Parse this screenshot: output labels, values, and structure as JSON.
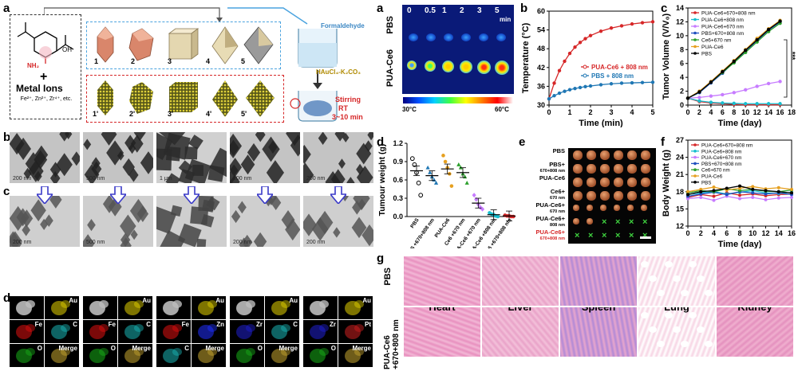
{
  "panel_labels": {
    "a_left": "a",
    "b": "b",
    "c_left": "c",
    "d_left": "d",
    "a_right": "a",
    "b_right": "b",
    "c_right": "c",
    "d_right": "d",
    "e": "e",
    "f": "f",
    "g": "g"
  },
  "scheme": {
    "metal_ions_title": "Metal Ions",
    "metal_ions_list": "Fe²⁺, Zn²⁺, Zr⁴⁺, etc.",
    "ligand_nh2": "NH₂",
    "ligand_oh": "OH",
    "plus": "+",
    "formaldehyde": "Formaldehyde",
    "haucl": "HAuCl₄-K₂CO₃",
    "stirring": "Stirring",
    "rt": "RT",
    "time": "3~10 min",
    "mof_numbers": [
      "1",
      "2",
      "3",
      "4",
      "5"
    ],
    "au_numbers": [
      "1'",
      "2'",
      "3'",
      "4'",
      "5'"
    ]
  },
  "tem_b_scales": [
    "200 nm",
    "500 nm",
    "1 μm",
    "200 nm",
    "200 nm"
  ],
  "tem_c_scales": [
    "200 nm",
    "500 nm",
    "",
    "200 nm",
    "200 nm"
  ],
  "eds_groups": [
    [
      "Au",
      "Fe",
      "C",
      "O",
      "Merge"
    ],
    [
      "Au",
      "Fe",
      "C",
      "O",
      "Merge"
    ],
    [
      "Au",
      "Fe",
      "Zn",
      "C",
      "Merge"
    ],
    [
      "Au",
      "Zr",
      "C",
      "O",
      "Merge"
    ],
    [
      "Au",
      "Zr",
      "Pt",
      "O",
      "Merge"
    ]
  ],
  "thermal": {
    "times": [
      "0",
      "0.5",
      "1",
      "2",
      "3",
      "5"
    ],
    "time_unit": "min",
    "rows": [
      "PBS",
      "PUA-Ce6"
    ],
    "scale_min": "30°C",
    "scale_max": "60°C"
  },
  "chart_b": {
    "type": "line",
    "xlabel": "Time (min)",
    "ylabel": "Temperature (°C)",
    "xlim": [
      0,
      5
    ],
    "ylim": [
      30,
      60
    ],
    "xticks": [
      0,
      1,
      2,
      3,
      4,
      5
    ],
    "yticks": [
      30,
      36,
      42,
      48,
      54,
      60
    ],
    "series": [
      {
        "name": "PUA-Ce6 + 808 nm",
        "color": "#d62728",
        "x": [
          0,
          0.25,
          0.5,
          0.75,
          1,
          1.25,
          1.5,
          1.75,
          2,
          2.5,
          3,
          3.5,
          4,
          4.5,
          5
        ],
        "y": [
          32,
          37,
          41,
          44,
          46.5,
          48.5,
          50,
          51.2,
          52.2,
          53.6,
          54.6,
          55.3,
          55.9,
          56.3,
          56.6
        ]
      },
      {
        "name": "PBS + 808 nm",
        "color": "#1f77b4",
        "x": [
          0,
          0.25,
          0.5,
          0.75,
          1,
          1.25,
          1.5,
          1.75,
          2,
          2.5,
          3,
          3.5,
          4,
          4.5,
          5
        ],
        "y": [
          32,
          33,
          33.8,
          34.4,
          34.9,
          35.3,
          35.6,
          35.9,
          36.1,
          36.5,
          36.8,
          37,
          37.1,
          37.2,
          37.3
        ]
      }
    ]
  },
  "chart_c": {
    "type": "line",
    "xlabel": "Time (day)",
    "ylabel": "Tumor Volume (V/V₀)",
    "xlim": [
      0,
      18
    ],
    "ylim": [
      0,
      14
    ],
    "xticks": [
      0,
      2,
      4,
      6,
      8,
      10,
      12,
      14,
      16,
      18
    ],
    "yticks": [
      0,
      2,
      4,
      6,
      8,
      10,
      12,
      14
    ],
    "significance": "***",
    "x": [
      0,
      2,
      4,
      6,
      8,
      10,
      12,
      14,
      16
    ],
    "series": [
      {
        "name": "PUA-Ce6+670+808 nm",
        "color": "#d62728",
        "y": [
          1,
          0.5,
          0.3,
          0.2,
          0.1,
          0.05,
          0.05,
          0.05,
          0.05
        ]
      },
      {
        "name": "PUA-Ce6+808 nm",
        "color": "#17becf",
        "y": [
          1,
          0.6,
          0.4,
          0.3,
          0.25,
          0.2,
          0.2,
          0.2,
          0.2
        ]
      },
      {
        "name": "PUA-Ce6+670 nm",
        "color": "#c77cff",
        "y": [
          1,
          1.1,
          1.3,
          1.5,
          1.8,
          2.2,
          2.7,
          3.1,
          3.4
        ]
      },
      {
        "name": "PBS+670+808 nm",
        "color": "#1f4fbf",
        "y": [
          1,
          1.8,
          3.2,
          4.6,
          6.2,
          7.8,
          9.3,
          10.8,
          12
        ]
      },
      {
        "name": "Ce6+670 nm",
        "color": "#2ca02c",
        "y": [
          1,
          1.9,
          3.3,
          4.7,
          6.1,
          7.6,
          9.1,
          10.6,
          11.8
        ]
      },
      {
        "name": "PUA-Ce6",
        "color": "#e6a020",
        "y": [
          1,
          2,
          3.4,
          4.9,
          6.4,
          8,
          9.6,
          11,
          12.2
        ]
      },
      {
        "name": "PBS",
        "color": "#000000",
        "y": [
          1,
          1.9,
          3.3,
          4.8,
          6.3,
          7.9,
          9.4,
          10.9,
          12.1
        ]
      }
    ]
  },
  "chart_d": {
    "type": "scatter",
    "ylabel": "Tumour weight (g)",
    "ylim": [
      0,
      1.2
    ],
    "yticks": [
      0.0,
      0.3,
      0.6,
      0.9,
      1.2
    ],
    "categories": [
      "PBS",
      "PBS +670+808 nm",
      "PUA-Ce6",
      "Ce6 +670 nm",
      "PUA-Ce6 +670 nm",
      "PUA-Ce6 +808 nm",
      "PUA-Ce6 +670+808 nm"
    ],
    "colors": [
      "#000000",
      "#1f77b4",
      "#e6a020",
      "#2ca02c",
      "#c77cff",
      "#17becf",
      "#d62728"
    ],
    "means": [
      0.75,
      0.67,
      0.78,
      0.72,
      0.22,
      0.03,
      0.01
    ],
    "points": [
      [
        0.95,
        0.85,
        0.72,
        0.55,
        0.35
      ],
      [
        0.8,
        0.72,
        0.65,
        0.6,
        0.55
      ],
      [
        1.0,
        0.9,
        0.8,
        0.7,
        0.5
      ],
      [
        0.85,
        0.8,
        0.7,
        0.65,
        0.55
      ],
      [
        0.35,
        0.28,
        0.2,
        0.15,
        0.12
      ],
      [
        0.06,
        0.04,
        0.03,
        0.01,
        0.0
      ],
      [
        0.02,
        0.01,
        0.01,
        0.0,
        0.0
      ]
    ]
  },
  "panel_e": {
    "rows": [
      "PBS",
      "PBS+",
      "PUA-Ce6",
      "Ce6+",
      "PUA-Ce6+",
      "PUA-Ce6+",
      "PUA-Ce6+"
    ],
    "subs": [
      "",
      "670+808 nm",
      "",
      "670 nm",
      "670 nm",
      "808 nm",
      "670+808 nm"
    ],
    "tumors_per_row": [
      6,
      6,
      6,
      6,
      6,
      2,
      0
    ],
    "cross_mark": "×"
  },
  "chart_f": {
    "type": "line",
    "xlabel": "Time (day)",
    "ylabel": "Body Weight (g)",
    "xlim": [
      0,
      16
    ],
    "ylim": [
      12,
      27
    ],
    "xticks": [
      0,
      2,
      4,
      6,
      8,
      10,
      12,
      14,
      16
    ],
    "yticks": [
      12,
      15,
      18,
      21,
      24,
      27
    ],
    "x": [
      0,
      2,
      4,
      6,
      8,
      10,
      12,
      14,
      16
    ],
    "series": [
      {
        "name": "PUA-Ce6+670+808 nm",
        "color": "#d62728",
        "y": [
          17,
          17.5,
          17.2,
          17.8,
          17.4,
          17.6,
          17.3,
          17.5,
          17.6
        ]
      },
      {
        "name": "PUA-Ce6+808 nm",
        "color": "#17becf",
        "y": [
          17.5,
          17.8,
          18,
          17.6,
          17.9,
          18.2,
          17.8,
          17.7,
          17.9
        ]
      },
      {
        "name": "PUA-Ce6+670 nm",
        "color": "#c77cff",
        "y": [
          16.8,
          17,
          16.5,
          17.2,
          16.8,
          17,
          16.6,
          16.9,
          17
        ]
      },
      {
        "name": "PBS+670+808 nm",
        "color": "#1f4fbf",
        "y": [
          17.2,
          17.6,
          17.9,
          17.5,
          18,
          17.8,
          17.6,
          17.8,
          17.5
        ]
      },
      {
        "name": "Ce6+670 nm",
        "color": "#2ca02c",
        "y": [
          17.8,
          18.2,
          18,
          18.5,
          18.2,
          18.4,
          18.1,
          18,
          18.3
        ]
      },
      {
        "name": "PUA-Ce6",
        "color": "#e6a020",
        "y": [
          18,
          18.4,
          18.8,
          18.3,
          18.6,
          18.9,
          18.5,
          18.7,
          18.4
        ]
      },
      {
        "name": "PBS",
        "color": "#000000",
        "y": [
          17.5,
          18,
          18.2,
          18.6,
          19,
          18.4,
          18.2,
          18,
          17.8
        ]
      }
    ]
  },
  "histology": {
    "rows": [
      "PBS",
      "PUA-Ce6 +670+808 nm"
    ],
    "organs": [
      "Heart",
      "Liver",
      "Spleen",
      "Lung",
      "Kidney"
    ]
  }
}
